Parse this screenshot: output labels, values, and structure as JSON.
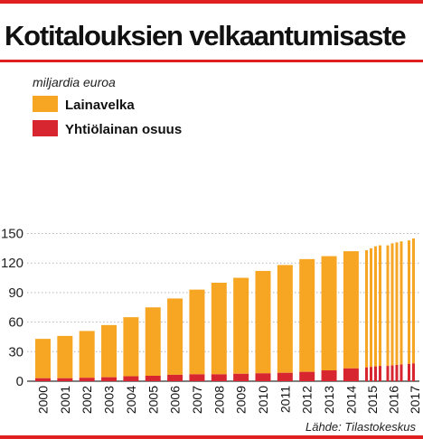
{
  "title": "Kotitalouksien velkaantumisaste",
  "colors": {
    "rule": "#e02020",
    "loan": "#f6a623",
    "company": "#d7262f",
    "grid": "#b5b5b5"
  },
  "chart_data": {
    "type": "bar",
    "stacked": true,
    "unit_label": "miljardia euroa",
    "source": "Lähde: Tilastokeskus",
    "ylim": [
      0,
      150
    ],
    "y_ticks": [
      0,
      30,
      60,
      90,
      120,
      150
    ],
    "grid": true,
    "legend": [
      {
        "key": "loan",
        "label": "Lainavelka"
      },
      {
        "key": "company",
        "label": "Yhtiölainan osuus"
      }
    ],
    "x_labels": [
      "2000",
      "2001",
      "2002",
      "2003",
      "2004",
      "2005",
      "2006",
      "2007",
      "2008",
      "2009",
      "2010",
      "2011",
      "2012",
      "2013",
      "2014",
      "2015",
      "2016",
      "2017"
    ],
    "annual": {
      "years": [
        "2000",
        "2001",
        "2002",
        "2003",
        "2004",
        "2005",
        "2006",
        "2007",
        "2008",
        "2009",
        "2010",
        "2011",
        "2012",
        "2013",
        "2014"
      ],
      "total": [
        43,
        46,
        51,
        57,
        65,
        75,
        84,
        93,
        100,
        105,
        112,
        118,
        124,
        127,
        132
      ],
      "company_share": [
        3,
        3,
        3.5,
        4,
        5,
        5.5,
        6.5,
        7,
        7,
        7.5,
        8,
        8.5,
        9.5,
        11,
        13
      ]
    },
    "quarterly": {
      "years": [
        "2015",
        "2016",
        "2017"
      ],
      "total": [
        [
          133,
          135,
          137,
          138
        ],
        [
          138,
          140,
          141,
          142
        ],
        [
          143,
          145
        ]
      ],
      "company_share": [
        [
          14,
          14.5,
          15,
          15.5
        ],
        [
          15.5,
          16,
          16.5,
          17
        ],
        [
          17.5,
          18
        ]
      ]
    }
  }
}
